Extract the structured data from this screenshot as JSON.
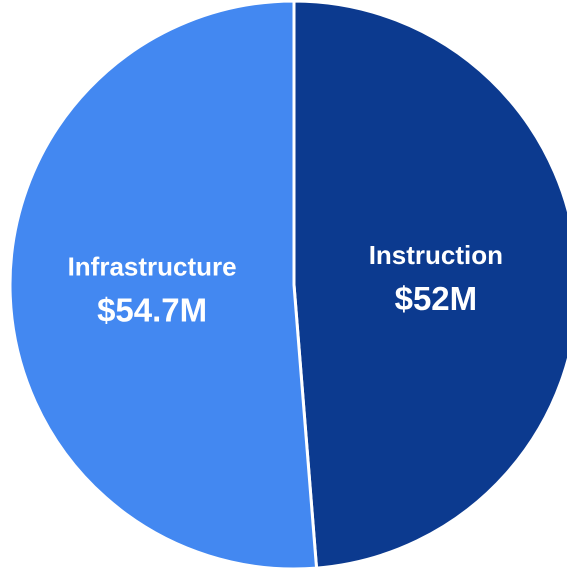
{
  "chart_data": {
    "type": "pie",
    "categories": [
      "Instruction",
      "Infrastructure"
    ],
    "values": [
      52,
      54.7
    ],
    "value_labels": [
      "$52M",
      "$54.7M"
    ],
    "colors": [
      "#0c3a8f",
      "#4388f1"
    ]
  }
}
